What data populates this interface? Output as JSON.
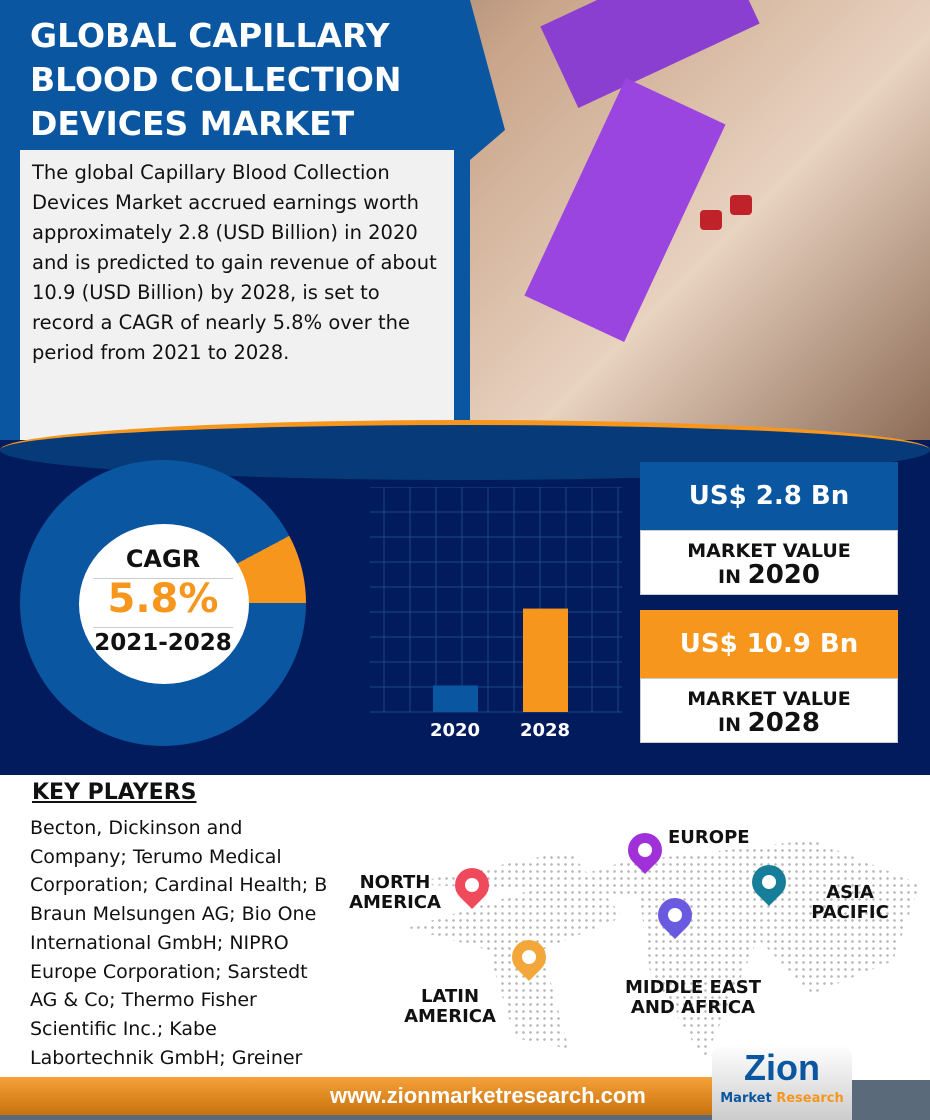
{
  "header": {
    "title": "GLOBAL CAPILLARY BLOOD COLLECTION DEVICES MARKET",
    "description": "The global Capillary Blood Collection Devices Market accrued earnings worth approximately 2.8 (USD Billion) in 2020 and is predicted to gain revenue of about 10.9 (USD Billion) by 2028, is set to record a CAGR of nearly 5.8% over the period from 2021 to 2028."
  },
  "cagr": {
    "label": "CAGR",
    "value": "5.8%",
    "period": "2021-2028"
  },
  "chart_data": {
    "type": "bar",
    "categories": [
      "2020",
      "2028"
    ],
    "values": [
      2.8,
      10.9
    ],
    "colors": [
      "#0b56a0",
      "#f7961d"
    ],
    "grid": true,
    "title": "",
    "xlabel": "",
    "ylabel": ""
  },
  "stats": [
    {
      "value": "US$ 2.8 Bn",
      "label": "MARKET VALUE",
      "prefix": "IN",
      "year": "2020",
      "color": "#0b56a0"
    },
    {
      "value": "US$ 10.9 Bn",
      "label": "MARKET VALUE",
      "prefix": "IN",
      "year": "2028",
      "color": "#f7961d"
    }
  ],
  "key_players": {
    "title": "KEY PLAYERS",
    "text": "Becton, Dickinson and Company; Terumo Medical Corporation; Cardinal Health; B Braun Melsungen AG; Bio One International GmbH; NIPRO Europe Corporation; Sarstedt AG & Co; Thermo Fisher Scientific Inc.; Kabe Labortechnik GmbH; Greiner and Owen Mumford Ltd."
  },
  "regions": {
    "north_america": "NORTH AMERICA",
    "europe": "EUROPE",
    "asia_pacific": "ASIA PACIFIC",
    "latin_america": "LATIN AMERICA",
    "mea": "MIDDLE EAST AND AFRICA"
  },
  "footer": {
    "url": "www.zionmarketresearch.com",
    "logo": "Zion Market Research"
  }
}
